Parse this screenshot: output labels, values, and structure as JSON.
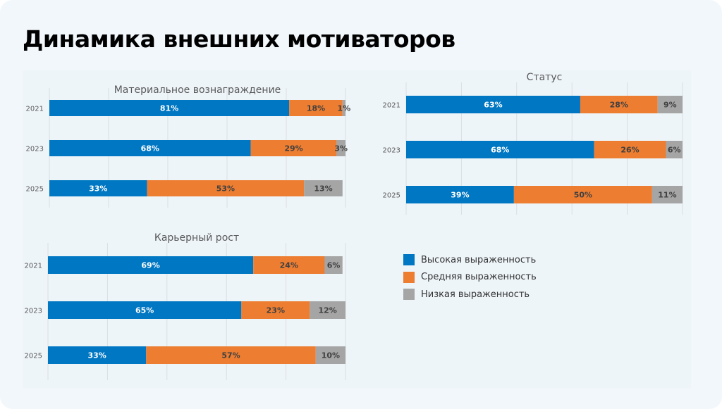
{
  "title": "Динамика внешних мотиваторов",
  "colors": {
    "high": "#0077c2",
    "medium": "#ed7d31",
    "low": "#a5a5a5"
  },
  "legend": [
    "Высокая выраженность",
    "Средняя выраженность",
    "Низкая выраженность"
  ],
  "chart_data": [
    {
      "type": "bar",
      "orientation": "horizontal",
      "stacked": true,
      "title": "Материальное вознаграждение",
      "categories": [
        "2021",
        "2023",
        "2025"
      ],
      "xlim": [
        0,
        100
      ],
      "grid": true,
      "series": [
        {
          "name": "Высокая выраженность",
          "values": [
            81,
            68,
            33
          ]
        },
        {
          "name": "Средняя выраженность",
          "values": [
            18,
            29,
            53
          ]
        },
        {
          "name": "Низкая выраженность",
          "values": [
            1,
            3,
            13
          ]
        }
      ]
    },
    {
      "type": "bar",
      "orientation": "horizontal",
      "stacked": true,
      "title": "Статус",
      "categories": [
        "2021",
        "2023",
        "2025"
      ],
      "xlim": [
        0,
        100
      ],
      "grid": true,
      "series": [
        {
          "name": "Высокая выраженность",
          "values": [
            63,
            68,
            39
          ]
        },
        {
          "name": "Средняя выраженность",
          "values": [
            28,
            26,
            50
          ]
        },
        {
          "name": "Низкая выраженность",
          "values": [
            9,
            6,
            11
          ]
        }
      ]
    },
    {
      "type": "bar",
      "orientation": "horizontal",
      "stacked": true,
      "title": "Карьерный рост",
      "categories": [
        "2021",
        "2023",
        "2025"
      ],
      "xlim": [
        0,
        100
      ],
      "grid": true,
      "series": [
        {
          "name": "Высокая выраженность",
          "values": [
            69,
            65,
            33
          ]
        },
        {
          "name": "Средняя выраженность",
          "values": [
            24,
            23,
            57
          ]
        },
        {
          "name": "Низкая выраженность",
          "values": [
            6,
            12,
            10
          ]
        }
      ]
    }
  ]
}
